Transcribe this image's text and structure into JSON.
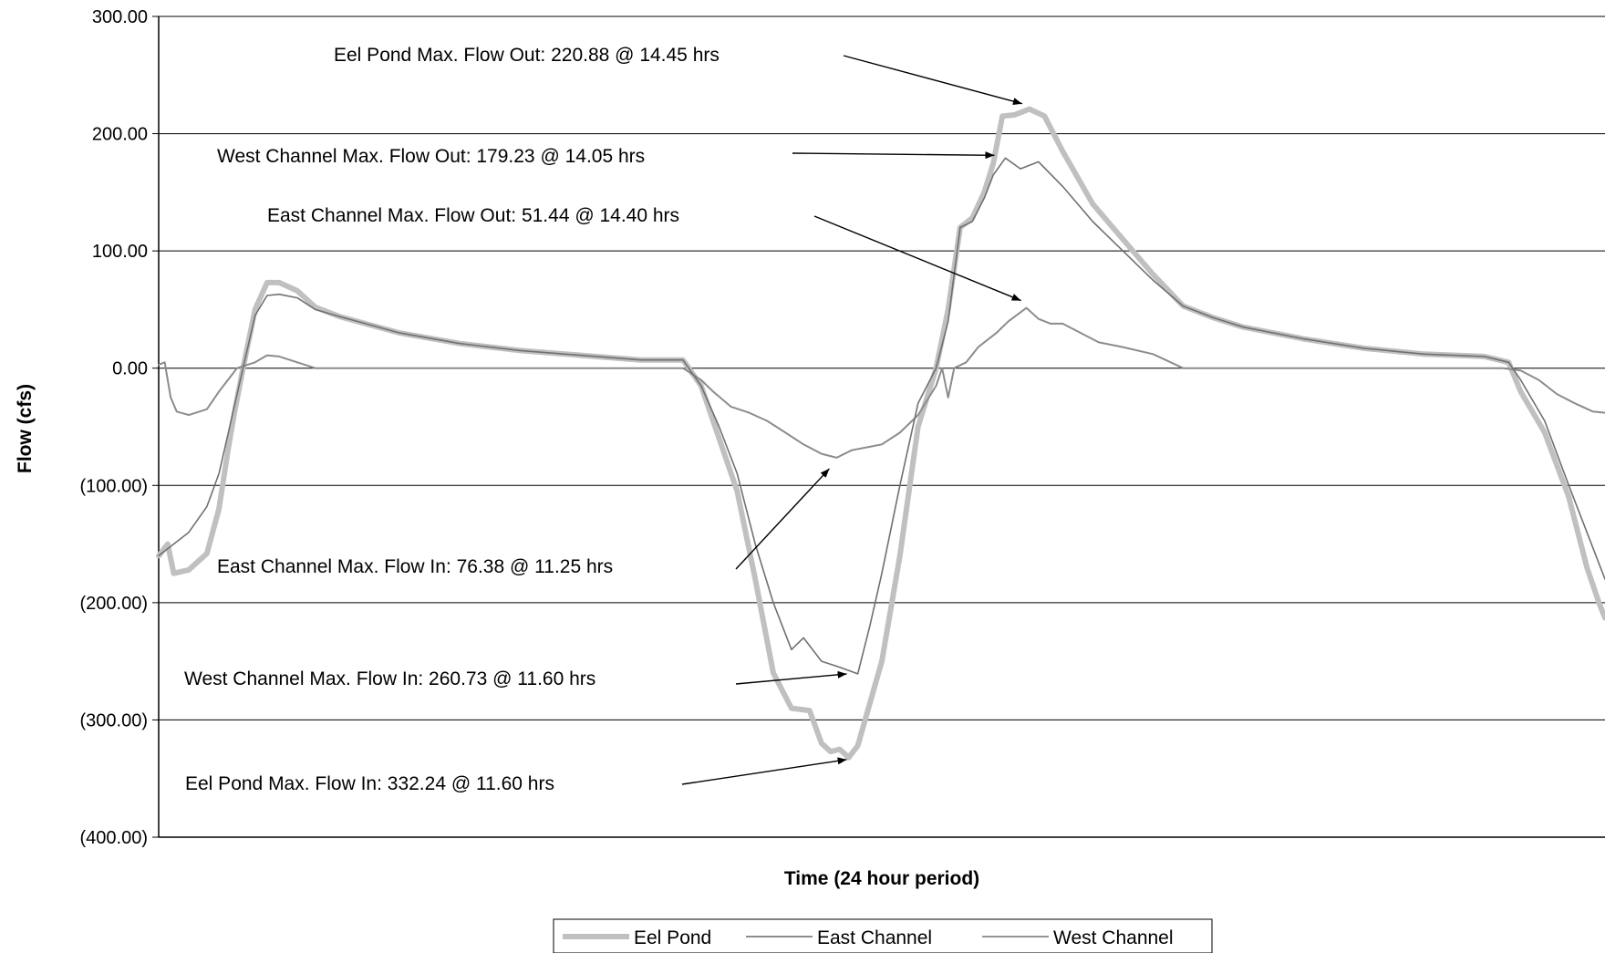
{
  "chart_data": {
    "type": "line",
    "title": "",
    "xlabel": "Time (24 hour period)",
    "ylabel": "Flow (cfs)",
    "xlim": [
      0,
      24
    ],
    "ylim": [
      -400,
      300
    ],
    "y_ticks": [
      300,
      200,
      100,
      0,
      -100,
      -200,
      -300,
      -400
    ],
    "y_tick_labels": [
      "300.00",
      "200.00",
      "100.00",
      "0.00",
      "(100.00)",
      "(200.00)",
      "(300.00)",
      "(400.00)"
    ],
    "grid": "horizontal",
    "legend": "bottom-center",
    "series": [
      {
        "name": "Eel Pond",
        "color": "#c0c0c0",
        "x": [
          0,
          0.15,
          0.25,
          0.5,
          0.8,
          1.0,
          1.15,
          1.25,
          1.4,
          1.6,
          1.8,
          2.0,
          2.3,
          2.6,
          3.0,
          4.0,
          5.0,
          6.0,
          7.0,
          8.0,
          8.7,
          9.0,
          9.3,
          9.6,
          9.9,
          10.2,
          10.5,
          10.8,
          11.0,
          11.15,
          11.3,
          11.45,
          11.6,
          11.75,
          12.0,
          12.3,
          12.6,
          12.9,
          13.1,
          13.3,
          13.5,
          13.7,
          13.85,
          14.0,
          14.2,
          14.45,
          14.7,
          15.0,
          15.5,
          16.0,
          16.5,
          17.0,
          17.5,
          18.0,
          19.0,
          20.0,
          21.0,
          22.0,
          22.4,
          22.6,
          23.0,
          23.4,
          23.7,
          23.9,
          24.0
        ],
        "values": [
          -160,
          -150,
          -175,
          -172,
          -158,
          -120,
          -70,
          -40,
          0,
          50,
          73,
          73,
          66,
          52,
          44,
          30,
          21,
          15,
          11,
          7,
          7,
          -15,
          -60,
          -105,
          -180,
          -260,
          -290,
          -292,
          -320,
          -327,
          -325,
          -332,
          -322,
          -295,
          -250,
          -160,
          -50,
          0,
          50,
          120,
          128,
          150,
          175,
          215,
          216,
          221,
          215,
          185,
          140,
          110,
          80,
          53,
          43,
          35,
          25,
          17,
          12,
          10,
          5,
          -20,
          -55,
          -110,
          -170,
          -200,
          -213
        ]
      },
      {
        "name": "East Channel",
        "color": "#8c8c8c",
        "x": [
          0,
          0.1,
          0.2,
          0.3,
          0.5,
          0.8,
          1.0,
          1.3,
          1.6,
          1.8,
          2.0,
          2.3,
          2.6,
          3.0,
          5.0,
          7.0,
          8.7,
          9.0,
          9.2,
          9.5,
          9.8,
          10.1,
          10.4,
          10.7,
          11.0,
          11.25,
          11.5,
          11.8,
          12.0,
          12.3,
          12.6,
          12.9,
          13.0,
          13.1,
          13.2,
          13.4,
          13.6,
          13.9,
          14.1,
          14.4,
          14.6,
          14.8,
          15.0,
          15.3,
          15.6,
          16.0,
          16.5,
          17.0,
          17.5,
          18.0,
          19.0,
          20.0,
          21.0,
          22.0,
          22.3,
          22.6,
          22.9,
          23.2,
          23.5,
          23.8,
          24.0
        ],
        "values": [
          3,
          5,
          -25,
          -37,
          -40,
          -35,
          -20,
          0,
          5,
          11,
          10,
          5,
          0,
          0,
          0,
          0,
          0,
          -10,
          -20,
          -33,
          -38,
          -45,
          -55,
          -65,
          -73,
          -76.38,
          -70,
          -67,
          -65,
          -55,
          -40,
          -15,
          0,
          -25,
          0,
          5,
          18,
          30,
          40,
          51.44,
          42,
          38,
          38,
          30,
          22,
          18,
          12,
          0,
          0,
          0,
          0,
          0,
          0,
          0,
          0,
          -2,
          -10,
          -22,
          -30,
          -37,
          -38
        ]
      },
      {
        "name": "West Channel",
        "color": "#707070",
        "x": [
          0,
          0.5,
          0.8,
          1.0,
          1.2,
          1.4,
          1.6,
          1.8,
          2.0,
          2.3,
          2.6,
          3.0,
          4.0,
          5.0,
          6.0,
          7.0,
          8.0,
          8.7,
          9.0,
          9.3,
          9.6,
          9.9,
          10.2,
          10.5,
          10.7,
          11.0,
          11.3,
          11.6,
          11.8,
          12.0,
          12.3,
          12.6,
          12.9,
          13.1,
          13.3,
          13.5,
          13.7,
          13.85,
          14.05,
          14.3,
          14.6,
          15.0,
          15.5,
          16.0,
          16.5,
          17.0,
          17.5,
          18.0,
          19.0,
          20.0,
          21.0,
          22.0,
          22.4,
          22.6,
          23.0,
          23.4,
          23.7,
          24.0
        ],
        "values": [
          -160,
          -140,
          -118,
          -90,
          -45,
          0,
          45,
          62,
          63,
          60,
          50,
          44,
          30,
          21,
          15,
          11,
          7,
          7,
          -15,
          -50,
          -90,
          -150,
          -200,
          -240,
          -230,
          -250,
          -255,
          -260.73,
          -220,
          -175,
          -100,
          -30,
          0,
          40,
          120,
          125,
          145,
          165,
          179.23,
          170,
          176,
          155,
          125,
          100,
          75,
          53,
          43,
          35,
          25,
          17,
          12,
          10,
          5,
          -10,
          -45,
          -100,
          -140,
          -180
        ]
      }
    ],
    "annotations": [
      {
        "text": "Eel Pond Max. Flow Out: 220.88 @ 14.45 hrs",
        "x": 14.45,
        "y": 220.88
      },
      {
        "text": "West Channel Max. Flow Out: 179.23 @ 14.05 hrs",
        "x": 14.05,
        "y": 179.23
      },
      {
        "text": "East Channel Max. Flow Out: 51.44 @ 14.40 hrs",
        "x": 14.4,
        "y": 51.44
      },
      {
        "text": "East Channel Max. Flow In: 76.38 @ 11.25 hrs",
        "x": 11.25,
        "y": -76.38
      },
      {
        "text": "West Channel Max. Flow In: 260.73 @ 11.60 hrs",
        "x": 11.6,
        "y": -260.73
      },
      {
        "text": "Eel Pond Max. Flow In: 332.24 @ 11.60 hrs",
        "x": 11.6,
        "y": -332.24
      }
    ]
  }
}
